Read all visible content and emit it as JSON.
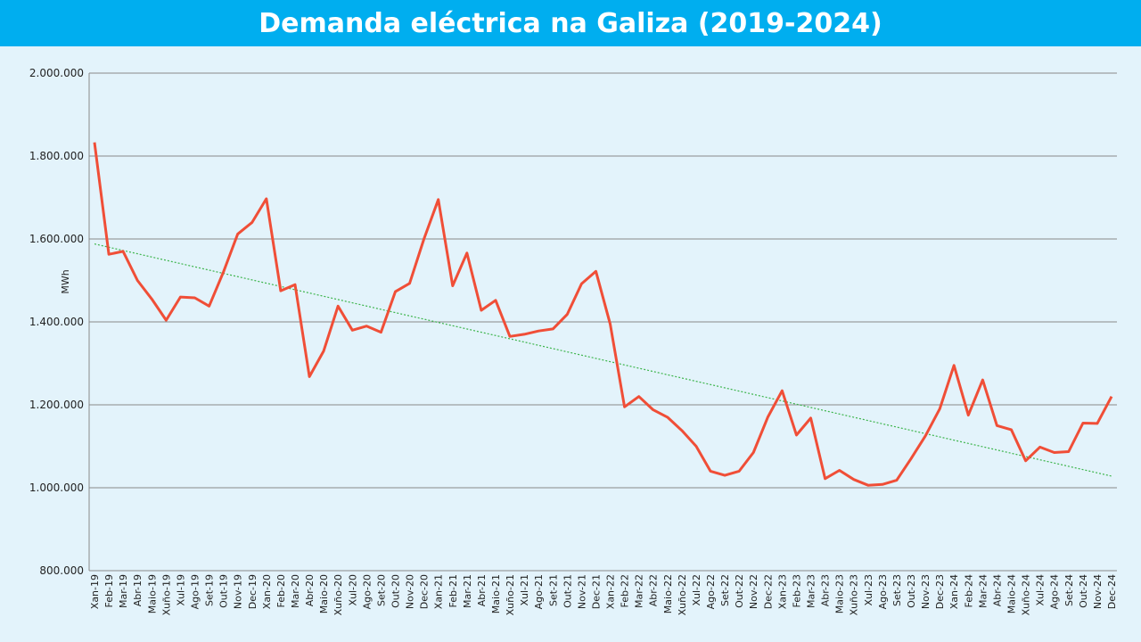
{
  "title": "Demanda eléctrica na Galiza (2019-2024)",
  "colors": {
    "header_bg": "#00aeef",
    "plot_bg": "#e3f3fb",
    "series": "#f04e37",
    "trend": "#3cb44b",
    "grid": "#8a8a8a"
  },
  "chart_data": {
    "type": "line",
    "ylabel": "MWh",
    "ylim": [
      800000,
      2000000
    ],
    "yticks": [
      800000,
      1000000,
      1200000,
      1400000,
      1600000,
      1800000,
      2000000
    ],
    "ytick_labels": [
      "800.000",
      "1.000.000",
      "1.200.000",
      "1.400.000",
      "1.600.000",
      "1.800.000",
      "2.000.000"
    ],
    "grid": true,
    "legend": "none",
    "categories": [
      "Xan-19",
      "Feb-19",
      "Mar-19",
      "Abr-19",
      "Maio-19",
      "Xuño-19",
      "Xul-19",
      "Ago-19",
      "Set-19",
      "Out-19",
      "Nov-19",
      "Dec-19",
      "Xan-20",
      "Feb-20",
      "Mar-20",
      "Abr-20",
      "Maio-20",
      "Xuño-20",
      "Xul-20",
      "Ago-20",
      "Set-20",
      "Out-20",
      "Nov-20",
      "Dec-20",
      "Xan-21",
      "Feb-21",
      "Mar-21",
      "Abr-21",
      "Maio-21",
      "Xuño-21",
      "Xul-21",
      "Ago-21",
      "Set-21",
      "Out-21",
      "Nov-21",
      "Dec-21",
      "Xan-22",
      "Feb-22",
      "Mar-22",
      "Abr-22",
      "Maio-22",
      "Xuño-22",
      "Xul-22",
      "Ago-22",
      "Set-22",
      "Out-22",
      "Nov-22",
      "Dec-22",
      "Xan-23",
      "Feb-23",
      "Mar-23",
      "Abr-23",
      "Maio-23",
      "Xuño-23",
      "Xul-23",
      "Ago-23",
      "Set-23",
      "Out-23",
      "Nov-23",
      "Dec-23",
      "Xan-24",
      "Feb-24",
      "Mar-24",
      "Abr-24",
      "Maio-24",
      "Xuño-24",
      "Xul-24",
      "Ago-24",
      "Set-24",
      "Out-24",
      "Nov-24",
      "Dec-24"
    ],
    "series": [
      {
        "values": [
          1833000,
          1563000,
          1570000,
          1500000,
          1455000,
          1404000,
          1460000,
          1458000,
          1438000,
          1520000,
          1612000,
          1640000,
          1697000,
          1475000,
          1490000,
          1268000,
          1330000,
          1438000,
          1380000,
          1390000,
          1375000,
          1473000,
          1493000,
          1600000,
          1695000,
          1487000,
          1566000,
          1428000,
          1452000,
          1365000,
          1370000,
          1378000,
          1383000,
          1418000,
          1492000,
          1522000,
          1395000,
          1195000,
          1220000,
          1188000,
          1170000,
          1138000,
          1100000,
          1040000,
          1030000,
          1040000,
          1085000,
          1170000,
          1234000,
          1127000,
          1168000,
          1022000,
          1042000,
          1020000,
          1006000,
          1008000,
          1018000,
          1070000,
          1125000,
          1190000,
          1295000,
          1175000,
          1260000,
          1150000,
          1140000,
          1065000,
          1098000,
          1085000,
          1087000,
          1156000,
          1155000,
          1220000
        ]
      }
    ],
    "trend": {
      "style": "dotted",
      "start": 1588000,
      "end": 1028000
    }
  }
}
